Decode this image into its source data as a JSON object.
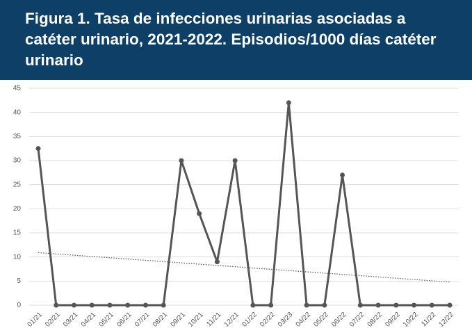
{
  "chart_data": {
    "type": "line",
    "title": "Figura 1. Tasa de infecciones urinarias asociadas a catéter urinario, 2021-2022. Episodios/1000 días catéter urinario",
    "categories": [
      "01/21",
      "02/21",
      "03/21",
      "04/21",
      "05/21",
      "06/21",
      "07/21",
      "08/21",
      "09/21",
      "10/21",
      "11/21",
      "12/21",
      "01/22",
      "02/22",
      "03/23",
      "04/22",
      "05/22",
      "06/22",
      "07/22",
      "08/22",
      "09/22",
      "10/22",
      "11/22",
      "12/22"
    ],
    "series": [
      {
        "name": "Tasa",
        "color": "#555555",
        "values": [
          32.5,
          0,
          0,
          0,
          0,
          0,
          0,
          0,
          30,
          19,
          9,
          30,
          0,
          0,
          42,
          0,
          0,
          27,
          0,
          0,
          0,
          0,
          0,
          0
        ]
      }
    ],
    "trendline": {
      "color": "#555555",
      "values": [
        10.9,
        4.8
      ]
    },
    "ylim": [
      0,
      45
    ],
    "yticks": [
      0,
      5,
      10,
      15,
      20,
      25,
      30,
      35,
      40,
      45
    ],
    "grid": true
  }
}
